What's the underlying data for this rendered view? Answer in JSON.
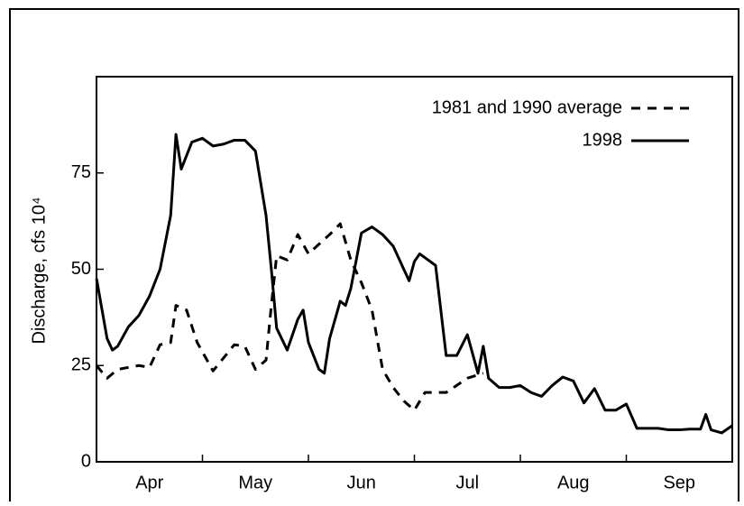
{
  "chart_data": {
    "type": "line",
    "ylabel": "Discharge, cfs 10⁴",
    "xlim": [
      0,
      6
    ],
    "xticks": [
      {
        "value": 0.5,
        "label": "Apr"
      },
      {
        "value": 1.5,
        "label": "May"
      },
      {
        "value": 2.5,
        "label": "Jun"
      },
      {
        "value": 3.5,
        "label": "Jul"
      },
      {
        "value": 4.5,
        "label": "Aug"
      },
      {
        "value": 5.5,
        "label": "Sep"
      }
    ],
    "ylim": [
      0,
      100
    ],
    "yticks": [
      0,
      25,
      50,
      75
    ],
    "legend": "top-right",
    "series": [
      {
        "name": "1981 and 1990 average",
        "color": "#000000",
        "dash": "dashed",
        "x": [
          0,
          0.1,
          0.2,
          0.4,
          0.5,
          0.6,
          0.7,
          0.75,
          0.85,
          0.95,
          1.1,
          1.3,
          1.4,
          1.5,
          1.6,
          1.65,
          1.7,
          1.8,
          1.9,
          2.0,
          2.2,
          2.3,
          2.4,
          2.5,
          2.6,
          2.7,
          2.8,
          2.9,
          3.0,
          3.1,
          3.3,
          3.5,
          3.65
        ],
        "values": [
          25,
          21.7,
          24,
          25,
          24.5,
          30.4,
          31,
          40.6,
          39.4,
          31,
          23.6,
          30.4,
          30,
          24,
          26.4,
          40.6,
          53.5,
          52.4,
          59,
          54,
          59,
          61.8,
          52.4,
          46.5,
          39.4,
          24,
          19.3,
          15.8,
          13.4,
          18,
          18,
          21.7,
          23
        ]
      },
      {
        "name": "1998",
        "color": "#000000",
        "dash": "solid",
        "x": [
          0,
          0.1,
          0.15,
          0.2,
          0.3,
          0.4,
          0.5,
          0.6,
          0.7,
          0.75,
          0.8,
          0.9,
          1.0,
          1.1,
          1.2,
          1.3,
          1.4,
          1.5,
          1.6,
          1.65,
          1.7,
          1.8,
          1.9,
          1.95,
          2.0,
          2.1,
          2.15,
          2.2,
          2.3,
          2.35,
          2.4,
          2.5,
          2.6,
          2.7,
          2.8,
          2.9,
          2.95,
          3.0,
          3.05,
          3.2,
          3.3,
          3.4,
          3.5,
          3.6,
          3.65,
          3.7,
          3.8,
          3.9,
          4.0,
          4.1,
          4.2,
          4.3,
          4.4,
          4.5,
          4.6,
          4.7,
          4.8,
          4.9,
          5.0,
          5.1,
          5.2,
          5.3,
          5.4,
          5.5,
          5.6,
          5.7,
          5.75,
          5.8,
          5.9,
          6.0
        ],
        "values": [
          47.6,
          32,
          29,
          30,
          35,
          38,
          43,
          50,
          64,
          85,
          76,
          83,
          84,
          82,
          82.5,
          83.5,
          83.5,
          80.7,
          64,
          50,
          34.7,
          29,
          37,
          39.4,
          31,
          24,
          23,
          32,
          41.7,
          40.6,
          45,
          59.4,
          61,
          59,
          56,
          50,
          47,
          52,
          54,
          51,
          27.6,
          27.6,
          33,
          23,
          30,
          21.7,
          19.3,
          19.3,
          19.8,
          18,
          17,
          19.8,
          22,
          21,
          15.3,
          19,
          13.4,
          13.4,
          15,
          8.7,
          8.7,
          8.7,
          8.3,
          8.3,
          8.5,
          8.5,
          12.3,
          8.3,
          7.5,
          9.4
        ]
      }
    ]
  }
}
